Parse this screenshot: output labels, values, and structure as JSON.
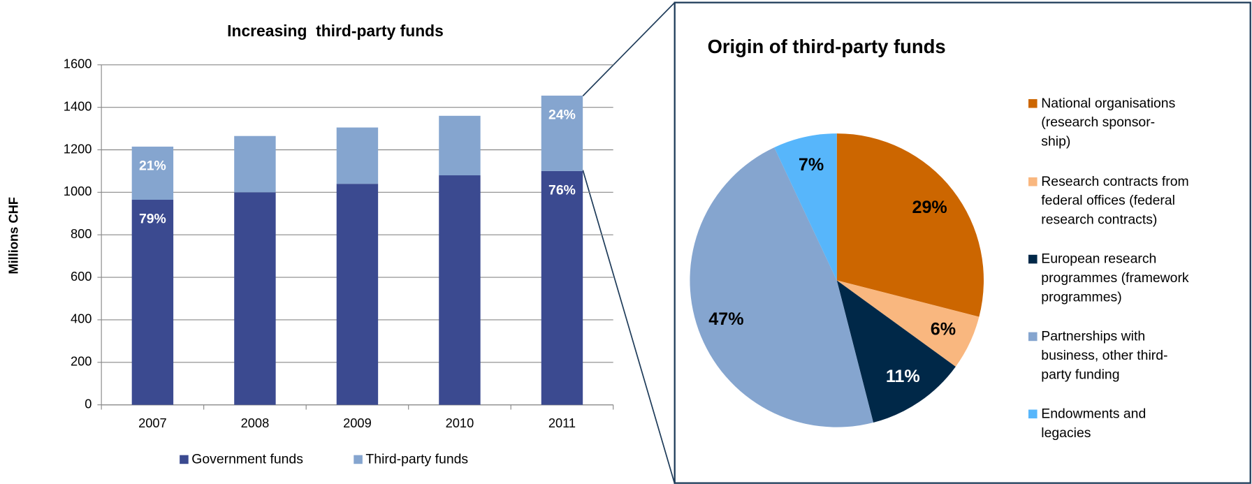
{
  "chart_data": [
    {
      "type": "bar",
      "title": "Increasing  third-party funds",
      "y_label": "Millions CHF",
      "categories": [
        "2007",
        "2008",
        "2009",
        "2010",
        "2011"
      ],
      "series": [
        {
          "name": "Government funds",
          "color": "#3b4a90",
          "values": [
            965,
            1000,
            1040,
            1080,
            1100
          ],
          "shares": [
            {
              "value": 79,
              "label": "79%"
            },
            null,
            null,
            null,
            {
              "value": 76,
              "label": "76%"
            }
          ]
        },
        {
          "name": "Third-party funds",
          "color": "#85a5cf",
          "values": [
            250,
            265,
            265,
            280,
            355
          ],
          "shares": [
            {
              "value": 21,
              "label": "21%"
            },
            null,
            null,
            null,
            {
              "value": 24,
              "label": "24%"
            }
          ]
        }
      ],
      "ylim": [
        0,
        1600
      ],
      "yticks": [
        0,
        200,
        400,
        600,
        800,
        1000,
        1200,
        1400,
        1600
      ],
      "grid": true
    },
    {
      "type": "pie",
      "title": "Origin of third-party funds",
      "categories": [
        "National organisations\n(research sponsor-\nship)",
        "Research contracts from\nfederal offices (federal\nresearch contracts)",
        "European research\nprogrammes (framework\nprogrammes)",
        "Partnerships with\nbusiness, other third-\nparty funding",
        "Endowments and\nlegacies"
      ],
      "values": [
        29,
        6,
        11,
        47,
        7
      ],
      "value_labels": [
        "29%",
        "6%",
        "11%",
        "47%",
        "7%"
      ],
      "colors": [
        "#cc6600",
        "#f9b77f",
        "#002848",
        "#85a5cf",
        "#57b6fb"
      ]
    }
  ]
}
